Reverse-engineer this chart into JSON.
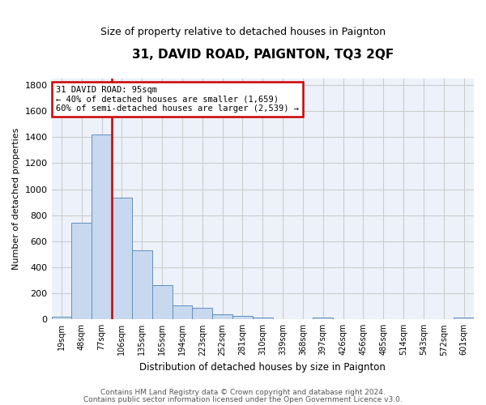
{
  "title": "31, DAVID ROAD, PAIGNTON, TQ3 2QF",
  "subtitle": "Size of property relative to detached houses in Paignton",
  "xlabel": "Distribution of detached houses by size in Paignton",
  "ylabel": "Number of detached properties",
  "footer_line1": "Contains HM Land Registry data © Crown copyright and database right 2024.",
  "footer_line2": "Contains public sector information licensed under the Open Government Licence v3.0.",
  "bins": [
    "19sqm",
    "48sqm",
    "77sqm",
    "106sqm",
    "135sqm",
    "165sqm",
    "194sqm",
    "223sqm",
    "252sqm",
    "281sqm",
    "310sqm",
    "339sqm",
    "368sqm",
    "397sqm",
    "426sqm",
    "456sqm",
    "485sqm",
    "514sqm",
    "543sqm",
    "572sqm",
    "601sqm"
  ],
  "values": [
    20,
    740,
    1420,
    935,
    530,
    265,
    105,
    92,
    40,
    27,
    15,
    0,
    0,
    14,
    0,
    0,
    0,
    0,
    0,
    0,
    14
  ],
  "bar_color": "#c8d8ee",
  "bar_edge_color": "#6090c0",
  "vline_color": "#cc0000",
  "annotation_text_line1": "31 DAVID ROAD: 95sqm",
  "annotation_text_line2": "← 40% of detached houses are smaller (1,659)",
  "annotation_text_line3": "60% of semi-detached houses are larger (2,539) →",
  "annotation_box_color": "#ffffff",
  "annotation_box_edge": "#cc0000",
  "ylim": [
    0,
    1850
  ],
  "yticks": [
    0,
    200,
    400,
    600,
    800,
    1000,
    1200,
    1400,
    1600,
    1800
  ],
  "grid_color": "#cccccc",
  "bg_color": "#edf2fa"
}
